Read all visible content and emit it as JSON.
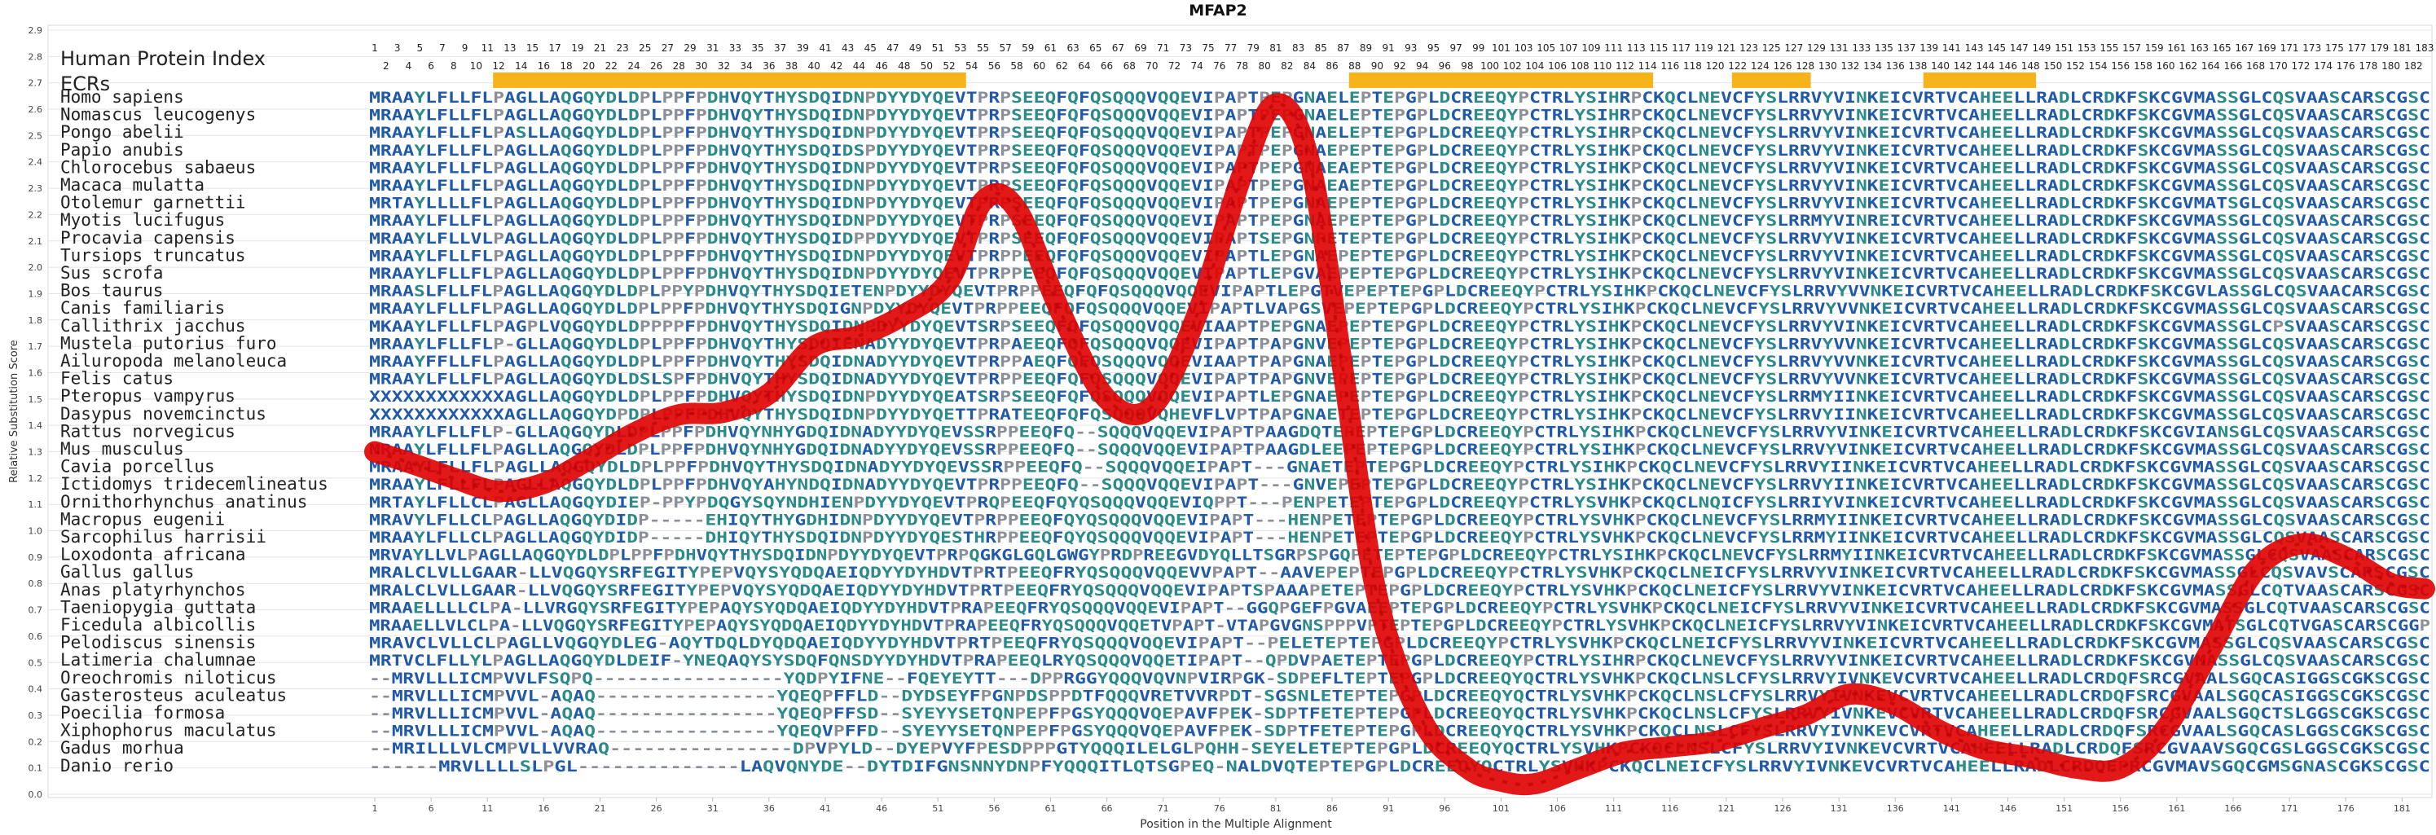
{
  "chart_data": {
    "type": "line",
    "title": "MFAP2",
    "xlabel": "Position in the Multiple Alignment",
    "ylabel": "Relative Substitution Score",
    "ylim": [
      0.0,
      2.9
    ],
    "yticks": [
      "0.0",
      "0.1",
      "0.2",
      "0.3",
      "0.4",
      "0.5",
      "0.6",
      "0.7",
      "0.8",
      "0.9",
      "1.0",
      "1.1",
      "1.2",
      "1.3",
      "1.4",
      "1.5",
      "1.6",
      "1.7",
      "1.8",
      "1.9",
      "2.0",
      "2.1",
      "2.2",
      "2.3",
      "2.4",
      "2.5",
      "2.6",
      "2.7",
      "2.8",
      "2.9"
    ],
    "xlim": [
      1,
      183
    ],
    "xticks": [
      "1",
      "6",
      "11",
      "16",
      "21",
      "26",
      "31",
      "36",
      "41",
      "46",
      "51",
      "56",
      "61",
      "66",
      "71",
      "76",
      "81",
      "86",
      "91",
      "96",
      "101",
      "106",
      "111",
      "116",
      "121",
      "126",
      "131",
      "136",
      "141",
      "146",
      "151",
      "156",
      "161",
      "166",
      "171",
      "176",
      "181"
    ],
    "legend_labels": {
      "human_index": "Human Protein Index",
      "ecrs": "ECRs"
    },
    "human_index_odd": [
      "1",
      "3",
      "5",
      "7",
      "9",
      "11",
      "13",
      "15",
      "17",
      "19",
      "21",
      "23",
      "25",
      "27",
      "29",
      "31",
      "33",
      "35",
      "37",
      "39",
      "41",
      "43",
      "45",
      "47",
      "49",
      "51",
      "53",
      "55",
      "57",
      "59",
      "61",
      "63",
      "65",
      "67",
      "69",
      "71",
      "73",
      "75",
      "77",
      "79",
      "81",
      "83",
      "85",
      "87",
      "89",
      "91",
      "93",
      "95",
      "97",
      "99",
      "101",
      "103",
      "105",
      "107",
      "109",
      "111",
      "113",
      "115",
      "117",
      "119",
      "121",
      "123",
      "125",
      "127",
      "129",
      "131",
      "133",
      "135",
      "137",
      "139",
      "141",
      "143",
      "145",
      "147",
      "149",
      "151",
      "153",
      "155",
      "157",
      "159",
      "161",
      "163",
      "165",
      "167",
      "169",
      "171",
      "173",
      "175",
      "177",
      "179",
      "181",
      "183"
    ],
    "human_index_even": [
      "2",
      "4",
      "6",
      "8",
      "10",
      "12",
      "14",
      "16",
      "18",
      "20",
      "22",
      "24",
      "26",
      "28",
      "30",
      "32",
      "34",
      "36",
      "38",
      "40",
      "42",
      "44",
      "46",
      "48",
      "50",
      "52",
      "54",
      "56",
      "58",
      "60",
      "62",
      "64",
      "66",
      "68",
      "70",
      "72",
      "74",
      "76",
      "78",
      "80",
      "82",
      "84",
      "86",
      "88",
      "90",
      "92",
      "94",
      "96",
      "98",
      "100",
      "102",
      "104",
      "106",
      "108",
      "110",
      "112",
      "114",
      "116",
      "118",
      "120",
      "122",
      "124",
      "126",
      "128",
      "130",
      "132",
      "134",
      "136",
      "138",
      "140",
      "142",
      "144",
      "146",
      "148",
      "150",
      "152",
      "154",
      "156",
      "158",
      "160",
      "162",
      "164",
      "166",
      "168",
      "170",
      "172",
      "174",
      "176",
      "178",
      "180",
      "182"
    ],
    "ecr_regions": [
      [
        12,
        53
      ],
      [
        88,
        114
      ],
      [
        122,
        128
      ],
      [
        139,
        148
      ]
    ],
    "species": [
      {
        "name": "Homo sapiens",
        "seq": "MRAAYLFLLFLPAGLLAQGQYDLDPLPPFPDHVQYTHYSDQIDNPDYYDYQEVTPRPSEEQFQFQSQQQVQQEVIPAPTPEPGNAELEPTEPGPLDCREEQYPCTRLYSIHRPCKQCLNEVCFYSLRRVYVINKEICVRTVCAHEELLRADLCRDKFSKCGVMASSGLCQSVAASCARSCGSC"
      },
      {
        "name": "Nomascus leucogenys",
        "seq": "MRAAYLFLLFLPAGLLAQGQYDLDPLPPFPDHVQYTHYSDQIDNPDYYDYQEVTPRPSEEQFQFQSQQQVQQEVIPAPTPEPGNAELEPTEPGPLDCREEQYPCTRLYSIHRPCKQCLNEVCFYSLRRVYVINKEICVRTVCAHEELLRADLCRDKFSKCGVMASSGLCQSVAASCARSCGSC"
      },
      {
        "name": "Pongo abelii",
        "seq": "MRAAYLFLLFLPASLLAQGQYDLDPLPPFPDHVQYTHYSDQIDNPDYYDYQEVTPRPSEEQFQFQSQQQVQQEVIPAPTPEPGNAELEPTEPGPLDCREEQYPCTRLYSIHRPCKQCLNEVCFYSLRRVYVINKEICVRTVCAHEELLRADLCRDKFSKCGVMASSGLCQSVAASCARSCGSC"
      },
      {
        "name": "Papio anubis",
        "seq": "MRAAYLFLLFLPAGLLAQGQYDLDPLPPFPDHVQYTHYSDQIDSPDYYDYQEVTPRPSEEQFQFQSQQQVQQEVIPAPTPEPGNAEPEPTEPGPLDCREEQYPCTRLYSIHKPCKQCLNEVCFYSLRRVYVINKEICVRTVCAHEELLRADLCRDKFSKCGVMASSGLCQSVAASCARSCGSC"
      },
      {
        "name": "Chlorocebus sabaeus",
        "seq": "MRAAYLFLLFLPAGLLAQGQYDLDPLPPFPDHVQYTHYSDQIDNPDYYDYQEVTPRPSEEQFQFQSQQQVQQEVIPAPTPEPGNAEAEPTEPGPLDCREEQYPCTRLYSIHKPCKQCLNEVCFYSLRRVYVINKEICVRTVCAHEELLRADLCRDKFSKCGVMASSGLCQSVAASCARSCGSC"
      },
      {
        "name": "Macaca mulatta",
        "seq": "MRAAYLFLLFLPAGLLAQGQYDLDPLPPFPDHVQYTHYSDQIDNPDYYDYQEVTPRPSEEQFQFQSQQQVQQEVIPAPTPEPGNAEAEPTEPGPLDCREEQYPCTRLYSIHKPCKQCLNEVCFYSLRRVYVINKEICVRTVCAHEELLRADLCRDKFSKCGVMASSGLCQSVAASCARSCGSC"
      },
      {
        "name": "Otolemur garnettii",
        "seq": "MRTAYLLLLFLPAGLLAQGQYDLDPLPPFPDHVQYTHYSDQIDNPDYYDYQEVTPRPSEEQFQFQSQQQVQQEVIPAPTPEPGNAEPEPTEPGPLDCREEQYPCTRLYSIHKPCKQCLNEVCFYSLRRVYVINKEICVRTVCAHEELLRADLCRDKFSKCGVMATSGLCQSVAASCARSCGSC"
      },
      {
        "name": "Myotis lucifugus",
        "seq": "MRAAYLFLLFLPAGLLAQGQYDLDPLPPFPDHVQYTHYSDQIDNPDYYDYQEVTPRPSEEQFQFQSQQQVQQEVIPAPTPEPGNAEPEPTEPGPLDCREEQYPCTRLYSIHKPCKQCLNEVCFYSLRRMYVINREICVRTVCAHEELLRADLCRDKFSKCGVMASSGLCQSVAASCARSCGSC"
      },
      {
        "name": "Procavia capensis",
        "seq": "MRAAYLFLLVLPAGLLAQGQYDLDPLPPFPDHVQYTHYSDQIDPPDYYDYQEVTPRPSEEQFQFQSQQQVQQEVIPAPTSEPGNPETEPTEPGPLDCREEQYPCTRLYSIHKPCKQCLNEVCFYSLRRVYVINKEICVRTVCAHEELLRADLCRDKFSKCGVMASSGLCQSVAASCARSCGSC"
      },
      {
        "name": "Tursiops truncatus",
        "seq": "MRAAYLFLLFLPAGLLAQGQYDLDPLPPFPDHVQYTHYSDQIDNPDYYDYQEVTPRPPEEQFQFQSQQQVQQEVIPAPTLEPGNAEPEPTEPGPLDCREEQYPCTRLYSIHKPCKQCLNEVCFYSLRRVYVINKEICVRTVCAHEELLRADLCRDKFSKCGVMASSGLCQSVAASCARSCGSC"
      },
      {
        "name": "Sus scrofa",
        "seq": "MRAAYLFLLFLPAGLLAQGQYDLDPLPPFPDHVQYTHYSDQIDNPDYYDYQEVTPRPPEEQFQFQSQQQVQQEVIPAPTLEPGVAEPEPTEPGPLDCREEQYPCTRLYSIHKPCKQCLNEVCFYSLRRVYVINKEICVRTVCAHEELLRADLCRDKFSKCGVMASSGLCQSVAASCARSCGSC"
      },
      {
        "name": "Bos taurus",
        "seq": "MRAASLFLLFLPAGLLAQGQYDLDPLPPYPDHVQYTHYSDQIETENPDYYDYQEVTPRPPEEQFQFQSQQQVQQEVIPAPTLEPGTVEPEPTEPGPLDCREEQYPCTRLYSIHKPCKQCLNEVCFYSLRRVYVVNKEICVRTVCAHEELLRADLCRDKFSKCGVLASSGLCQSVAACARSCGSC"
      },
      {
        "name": "Canis familiaris",
        "seq": "MRAAYLFLLFLPAGLLAQGQYDLDPLPPFPDHVQYTHYSDQIGNPDYYDYQEVTPRPPEEQFQFQSQQQVQQEVIPAPTLVAPGSVEPEPTEPGPLDCREEQYPCTRLYSIHKPCKQCLNEVCFYSLRRVYVVNKEICVRTVCAHEELLRADLCRDKFSKCGVMASSGLCQSVAASCARSCGSC"
      },
      {
        "name": "Callithrix jacchus",
        "seq": "MKAAYLFLLFLPAGPLVQGQYDLDPPPPFPDHVQYTHYSDQIDNPDYYDYQEVTSRPSEEQFQFQSQQQVQQEVIAAPTPEPGNAEPEPTEPGPLDCREEQYPCTRLYSIHKPCKQCLNEVCFYSLRRVYVINKEICVRTVCAHEELLRADLCRDKFSKCGVMASSGLCPSVAASCARSCGSC"
      },
      {
        "name": "Mustela putorius furo",
        "seq": "MRAAYLFLLFLP-GLLAQGQYDLDPLPPFPDHVQYTHYSDQIENADYYDYQEVTPRPAEEQFQFQSQQQVQQEVIPAPTPAPGNVEPEPTEPGPLDCREEQYPCTRLYSIHKPCKQCLNEVCFYSLRRVYVVNKEICVRTVCAHEELLRADLCRDKFSKCGVMASSGLCQSVAASCARSCGSC"
      },
      {
        "name": "Ailuropoda melanoleuca",
        "seq": "MRAAYFFLLFLPAGLLAQGQYDLDPLPPFPDHVQYTHYSDQIDNADYYDYQEVTPRPPAEQFQFQSQQQVQQEVIAAPTPAPGNAEPEPTEPGPLDCREEQYPCTRLYSIHKPCKQCLNEVCFYSLRRVYVVNKEICVRTVCAHEELLRADLCRDKFSKCGVMASSGLCQSVAASCARSCGSC"
      },
      {
        "name": "Felis catus",
        "seq": "MRAAYLFLLFLPAGLLAQGQYDLDSLSPFPDHVQYTHYSDQIDNADYYDYQEVTPRPPEEQFQFQSQQQVQQEVIPAPTPAPGNVEPEPTEPGPLDCREEQYPCTRLYSIHKPCKQCLNEVCFYSLRRVYVVNKEICVRTVCAHEELLRADLCRDKFSKCGVMASSGLCQSVAASCARSCGSC"
      },
      {
        "name": "Pteropus vampyrus",
        "seq": "XXXXXXXXXXXXAGLLAQGQYDLDPLPPFPDHVQYTHYSDQIDNPDYYDYQEATSRPSEEQFQFQSQQQVQQEVIPAPTLEPGNAEPEPTEPGPLDCREEQYPCTRLYSIHKPCKQCLNEVCFYSLRRMYIINKEICVRTVCAHEELLRADLCRDKFSKCGVMASSGLCQSVAASCARSCGSC"
      },
      {
        "name": "Dasypus novemcinctus",
        "seq": "XXXXXXXXXXXXAGLLAQGQYDPDPLPPFPDHVQYTHYSDQIDNPDYYDYQETTPRATEEQFQFQSQQQVQHEVFLVPTPAPGNAETEPTEPGPLDCREEQYPCTRLYSIHKPCKQCLNEVCFYSLRRVYIINKEICVRTVCAHEELLRADLCRDKFSKCGVMASSGLCQSVAASCARSCGSC"
      },
      {
        "name": "Rattus norvegicus",
        "seq": "MRAAYLFLLFLP-GLLAQGQYDLDPLPPFPDHVQYNHYGDQIDNADYYDYQEVSSRPPEEQFQ--SQQQVQQEVIPAPTPAAGDQTEPEPTEPGPLDCREEQYPCTRLYSIHKPCKQCLNEVCFYSLRRVYVINKEICVRTVCAHEELLRADLCRDKFSKCGVIANSGLCQSVAASCARSCGSC"
      },
      {
        "name": "Mus musculus",
        "seq": "MRAAYLFLLFLPAGLLAQGQYDLDPLPPFPDHVQYNHYGDQIDNADYYDYQEVSSRPPEEQFQ--SQQQVQQEVIPAPTPAAGDLEEPEPTEPGPLDCREEQYPCTRLYSIHKPCKQCLNEVCFYSLRRVYVINKEICVRTVCAHEELLRADLCRDKFSKCGVMASSGLCQSVAASCARSCGSC"
      },
      {
        "name": "Cavia porcellus",
        "seq": "MRAAYLFLLFLPAGLLAQGQYDLDPLPPFPDHVQYTHYSDQIDNADYYDYQEVSSRPPEEQFQ--SQQQVQQEIPAPT---GNAETEPTEPGPLDCREEQYPCTRLYSIHKPCKQCLNEVCFYSLRRVYIINKEICVRTVCAHEELLRADLCRDKFSKCGVMASSGLCQSVAASCARSCGSC"
      },
      {
        "name": "Ictidomys tridecemlineatus",
        "seq": "MRAAYLFLLFLPAGLLAQGQYDLDPLPPFPDHVQYAHYNDQIDNADYYDYQEVTPRPPEEQFQ--SQQQVQQEVIPAPT---GNVEPEPTEPGPLDCREEQYPCTRLYSIHKPCKQCLNEVCFYSLRRVYIINKEICVRTVCAHEELLRADLCRDKFSKCGVMASSGLCQSVAASCARSCGSC"
      },
      {
        "name": "Ornithorhynchus anatinus",
        "seq": "MRTAYLFLLCLPAGLLAQGQYDIEP-PPYPDQGYSQYNDHIENPDYYDYQEVTPRQPEEQFQYQSQQQVQQEVIQPPT---PENPETEPTEPGPLDCREEQYPCTRLYSVHKPCKQCLNQICFYSLRRIYVINKEICVRTVCAHEELLRADLCRDKFSKCGVMASSGLCQSVAASCARSCGSC"
      },
      {
        "name": "Macropus eugenii",
        "seq": "MRAVYLFLLCLPAGLLAQGQYDIDP-----EHIQYTHYGDHIDNPDYYDYQEVTPRPPEEQFQYQSQQQVQQEVIPAPT---HENPETEPTEPGPLDCREEQYPCTRLYSVHKPCKQCLNEVCFYSLRRMYIINKEICVRTVCAHEELLRADLCRDKFSKCGVMASSGLCQSVAASCARSCGSC"
      },
      {
        "name": "Sarcophilus harrisii",
        "seq": "MRAAYLFLLCLPAGLLAQGQYDIDP-----DHIQYTHYSDQIDNPDYYDYQESTHRPPEEQFQYQSQQQVQQEVIPAPT---HENPETEPTEPGPLDCREEQYPCTRLYSVHKPCKQCLNEVCFYSLRRMYIINKEICVRTVCAHEELLRADLCRDKFSKCGVMASSGLCQSVAASCARSCGSC"
      },
      {
        "name": "Loxodonta africana",
        "seq": "MRVAYLLVLPAGLLAQGQYDLDPLPPFPDHVQYTHYSDQIDNPDYYDYQEVTPRPQGKGLGQLGWGYPRDPREEGVDYQLLTSGRPSPGQPETEPTEPGPLDCREEQYPCTRLYSIHKPCKQCLNEVCFYSLRRMYIINKEICVRTVCAHEELLRADLCRDKFSKCGVMASSGLCQSVAASCARSCGSC"
      },
      {
        "name": "Gallus gallus",
        "seq": "MRALCLVLLGAAR-LLVQGQYSRFEGITYPEPVQYSYQDQAEIQDYYDYHDVTPRTPEEQFRYQSQQQVQQEVVPAPT--AAVEPEPTEPGPLDCREEQYPCTRLYSVHKPCKQCLNEICFYSLRRVYVINKEICVRTVCAHEELLRADLCRDKFSKCGVMASSGLCQSVAVSCARSCGSC"
      },
      {
        "name": "Anas platyrhynchos",
        "seq": "MRALCLVLLGAAR-LLVQGQYSRFEGITYPEPVQYSYQDQAEIQDYYDYHDVTPRTPEEQFRYQSQQQVQQEVIPAPTSPAAAPETEPTEPGPLDCREEQYPCTRLYSVHKPCKQCLNEICFYSLRRVYVINKEICVRTVCAHEELLRADLCRDKFSKCGVMASSGLCQTVAASCARSCGSC"
      },
      {
        "name": "Taeniopygia guttata",
        "seq": "MRAAELLLLCLPA-LLVRGQYSRFEGITYPEPAQYSYQDQAEIQDYYDYHDVTPRAPEEQFRYQSQQQVQQEVIPAPT--GGQPGEFPGVAEEPTEPGPLDCREEQYPCTRLYSVHKPCKQCLNEICFYSLRRVYVINKEICVRTVCAHEELLRADLCRDKFSKCGVMASSGLCQTVAASCARSCGSC"
      },
      {
        "name": "Ficedula albicollis",
        "seq": "MRAAELLVLCLPA-LLVQGQYSRFEGITYPEPAQYSYQDQAEIQDYYDYHDVTPRAPEEQFRYQSQQQVQQETVPAPT-VTAPGVGNSPPPVPTEPTEPGPLDCREEQYPCTRLYSVHKPCKQCLNEICFYSLRRVYVINKEICVRTVCAHEELLRADLCRDKFSKCGVMATSGLCQTVGASCARSCGGP"
      },
      {
        "name": "Pelodiscus sinensis",
        "seq": "MRAVCLVLLCLPAGLLVQGQYDLEG-AQYTDQLDYQDQAEIQDYYDYHDVTPRTPEEQFRYQSQQQVQQEVIPAPT--PELETEPTEPGPLDCREEQYPCTRLYSVHKPCKQCLNEICFYSLRRVYVINKEICVRTVCAHEELLRADLCRDKFSKCGVMASSGLCQSVAASCARSCGSC"
      },
      {
        "name": "Latimeria chalumnae",
        "seq": "MRTVCLFLLYLPAGLLAQGQYDLDEIF-YNEQAQYSYSDQFQNSDYYDYHDVTPRAPEEQLRYQSQQQVQQETIPAPT--QPDVPAETEPTEPGPLDCREEQYPCTRLYSIHRPCKQCLNEVCFYSLRRVYVINKEICVRTVCAHEELLRADLCRDKFSKCGVMASSGLCQSVAASCARSCGSC"
      },
      {
        "name": "Oreochromis niloticus",
        "seq": "--MRVLLLICMPVVLFSQPQ-----------------YQDPYIFNE--FQEYEYTT---DPPRGGYQQQVQVNPVIRPGK-SDPEFLTEPTEPGPLDCREEQYQCTRLYSVHKPCKQCLNSLCFYSLRRVYIVNKEVCVRTVCAHEELLRADLCRDQFSRCGVAALSGQCASIGGSCGKSCGSC"
      },
      {
        "name": "Gasterosteus aculeatus",
        "seq": "--MRVLLLICMPVVL-AQAQ----------------YQEQPFFLD--DYDSEYFPGNPDSPPDTFQQQVRETVVRPDT-SGSNLETEPTEPGPLDCREEQYQCTRLYSVHKPCKQCLNSLCFYSLRRVYIVNKEVCVRTVCAHEELLRADLCRDQFSRCGVAALSGQCASIGGSCGKSCGSC"
      },
      {
        "name": "Poecilia formosa",
        "seq": "--MRVLLLICMPVVL-AQAQ----------------YQEQPFFSD--SYEYYSETQNPEPFPGSYQQQVQEPAVFPEK-SDPTFETEPTEPGPLDCREEQYQCTRLYSVHKPCKQCLNSLCFYSLRRVYIVNKEVCVRTVCAHEELLRADLCRDQFSRCGVAALSGQCTSLGGSCGKSCGSC"
      },
      {
        "name": "Xiphophorus maculatus",
        "seq": "--MRVLLLICMPVVL-AQAQ----------------YQEQVPFFD--SYEYYSETQNPEPFPGSYQQQVQEPAVFPEK-SDPTFETEPTEPGPLDCREEQYQCTRLYSVHKPCKQCLNSLCFYSLRRVYIVNKEVCVRTVCAHEELLRADLCRDQFSRCGVAALSGQCASLGGSCGKSCGSC"
      },
      {
        "name": "Gadus morhua",
        "seq": "--MRILLLVLCMPVLLVVRAQ----------------DPVPYLD--DYEPVYFPESDPPPGTYQQQILELGLPQHH-SEYELETEPTEPGPLDCREEQYQCTRLYSVHKPCKQCLNSLCFYSLRRVYIVNKEVCVRTVCAHEELLRADLCRDQFSRCGVAAVSGQCGSLGGSCGKSCGSC"
      },
      {
        "name": "Danio rerio",
        "seq": "------MRVLLLLSLPGL--------------LAQVQNYDE--DYTDIFGNSNNYDNPFYQQQITLQTSGPEQ-NALDVQTEPTEPGPLDCREEQYQCTRLYSVHKPCKQCLNEICFYSLRRVYIVNKEVCVRTVCAHEELLRADLCRDQFPRCGVMAVSGQCGMSGNASCGKSCGSC"
      }
    ],
    "series": [
      {
        "x": [
          1,
          4,
          8,
          12,
          16,
          20,
          24,
          28,
          32,
          36,
          40,
          44,
          48,
          52,
          55,
          58,
          62,
          66,
          70,
          74,
          78,
          81,
          84,
          87,
          90,
          94,
          98,
          101,
          104,
          108,
          112,
          116,
          120,
          124,
          128,
          132,
          136,
          140,
          144,
          148,
          152,
          156,
          160,
          164,
          168,
          172,
          176,
          180,
          183
        ],
        "y": [
          1.3,
          1.26,
          1.2,
          1.15,
          1.18,
          1.27,
          1.37,
          1.44,
          1.45,
          1.52,
          1.7,
          1.74,
          1.82,
          1.95,
          2.25,
          2.22,
          1.82,
          1.5,
          1.47,
          1.82,
          2.35,
          2.62,
          2.4,
          1.6,
          0.75,
          0.28,
          0.1,
          0.05,
          0.04,
          0.1,
          0.16,
          0.18,
          0.2,
          0.25,
          0.3,
          0.38,
          0.34,
          0.24,
          0.17,
          0.14,
          0.1,
          0.1,
          0.25,
          0.55,
          0.85,
          0.95,
          0.9,
          0.8,
          0.78
        ]
      }
    ],
    "colors": {
      "line": "#e00000",
      "ecr": "#f6b41a",
      "conserved_blue": "#1f59a8",
      "teal": "#2b8a8a",
      "gray_letters": "#8a8f98",
      "grid": "#e4e4e4"
    }
  }
}
